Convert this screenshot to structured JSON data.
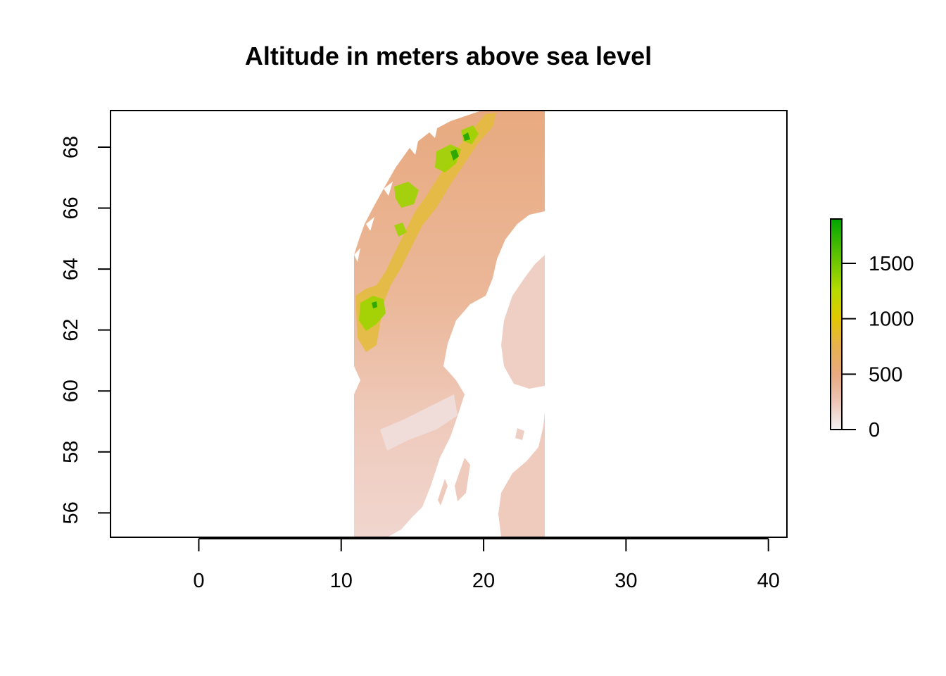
{
  "chart_data": {
    "type": "heatmap",
    "title": "Altitude in meters above sea level",
    "xlabel": "",
    "ylabel": "",
    "xlim": [
      -6.2,
      41.3
    ],
    "ylim": [
      55.2,
      69.2
    ],
    "x_ticks": [
      0,
      10,
      20,
      30,
      40
    ],
    "x_tick_labels": [
      "0",
      "10",
      "20",
      "30",
      "40"
    ],
    "y_ticks": [
      56,
      58,
      60,
      62,
      64,
      66,
      68
    ],
    "y_tick_labels": [
      "56",
      "58",
      "60",
      "62",
      "64",
      "66",
      "68"
    ],
    "raster_extent": {
      "xmin": 10.9,
      "xmax": 24.4,
      "ymin": 55.2,
      "ymax": 69.2
    },
    "legend": {
      "placement": "right",
      "min": 0,
      "max": 1900,
      "ticks": [
        0,
        500,
        1000,
        1500
      ],
      "tick_labels": [
        "0",
        "500",
        "1000",
        "1500"
      ],
      "colors": [
        "#f2f2f2",
        "#eec3b2",
        "#e8aa80",
        "#e6b24e",
        "#e2c800",
        "#b7dc00",
        "#6cc700",
        "#00a600"
      ]
    },
    "grid": false
  }
}
